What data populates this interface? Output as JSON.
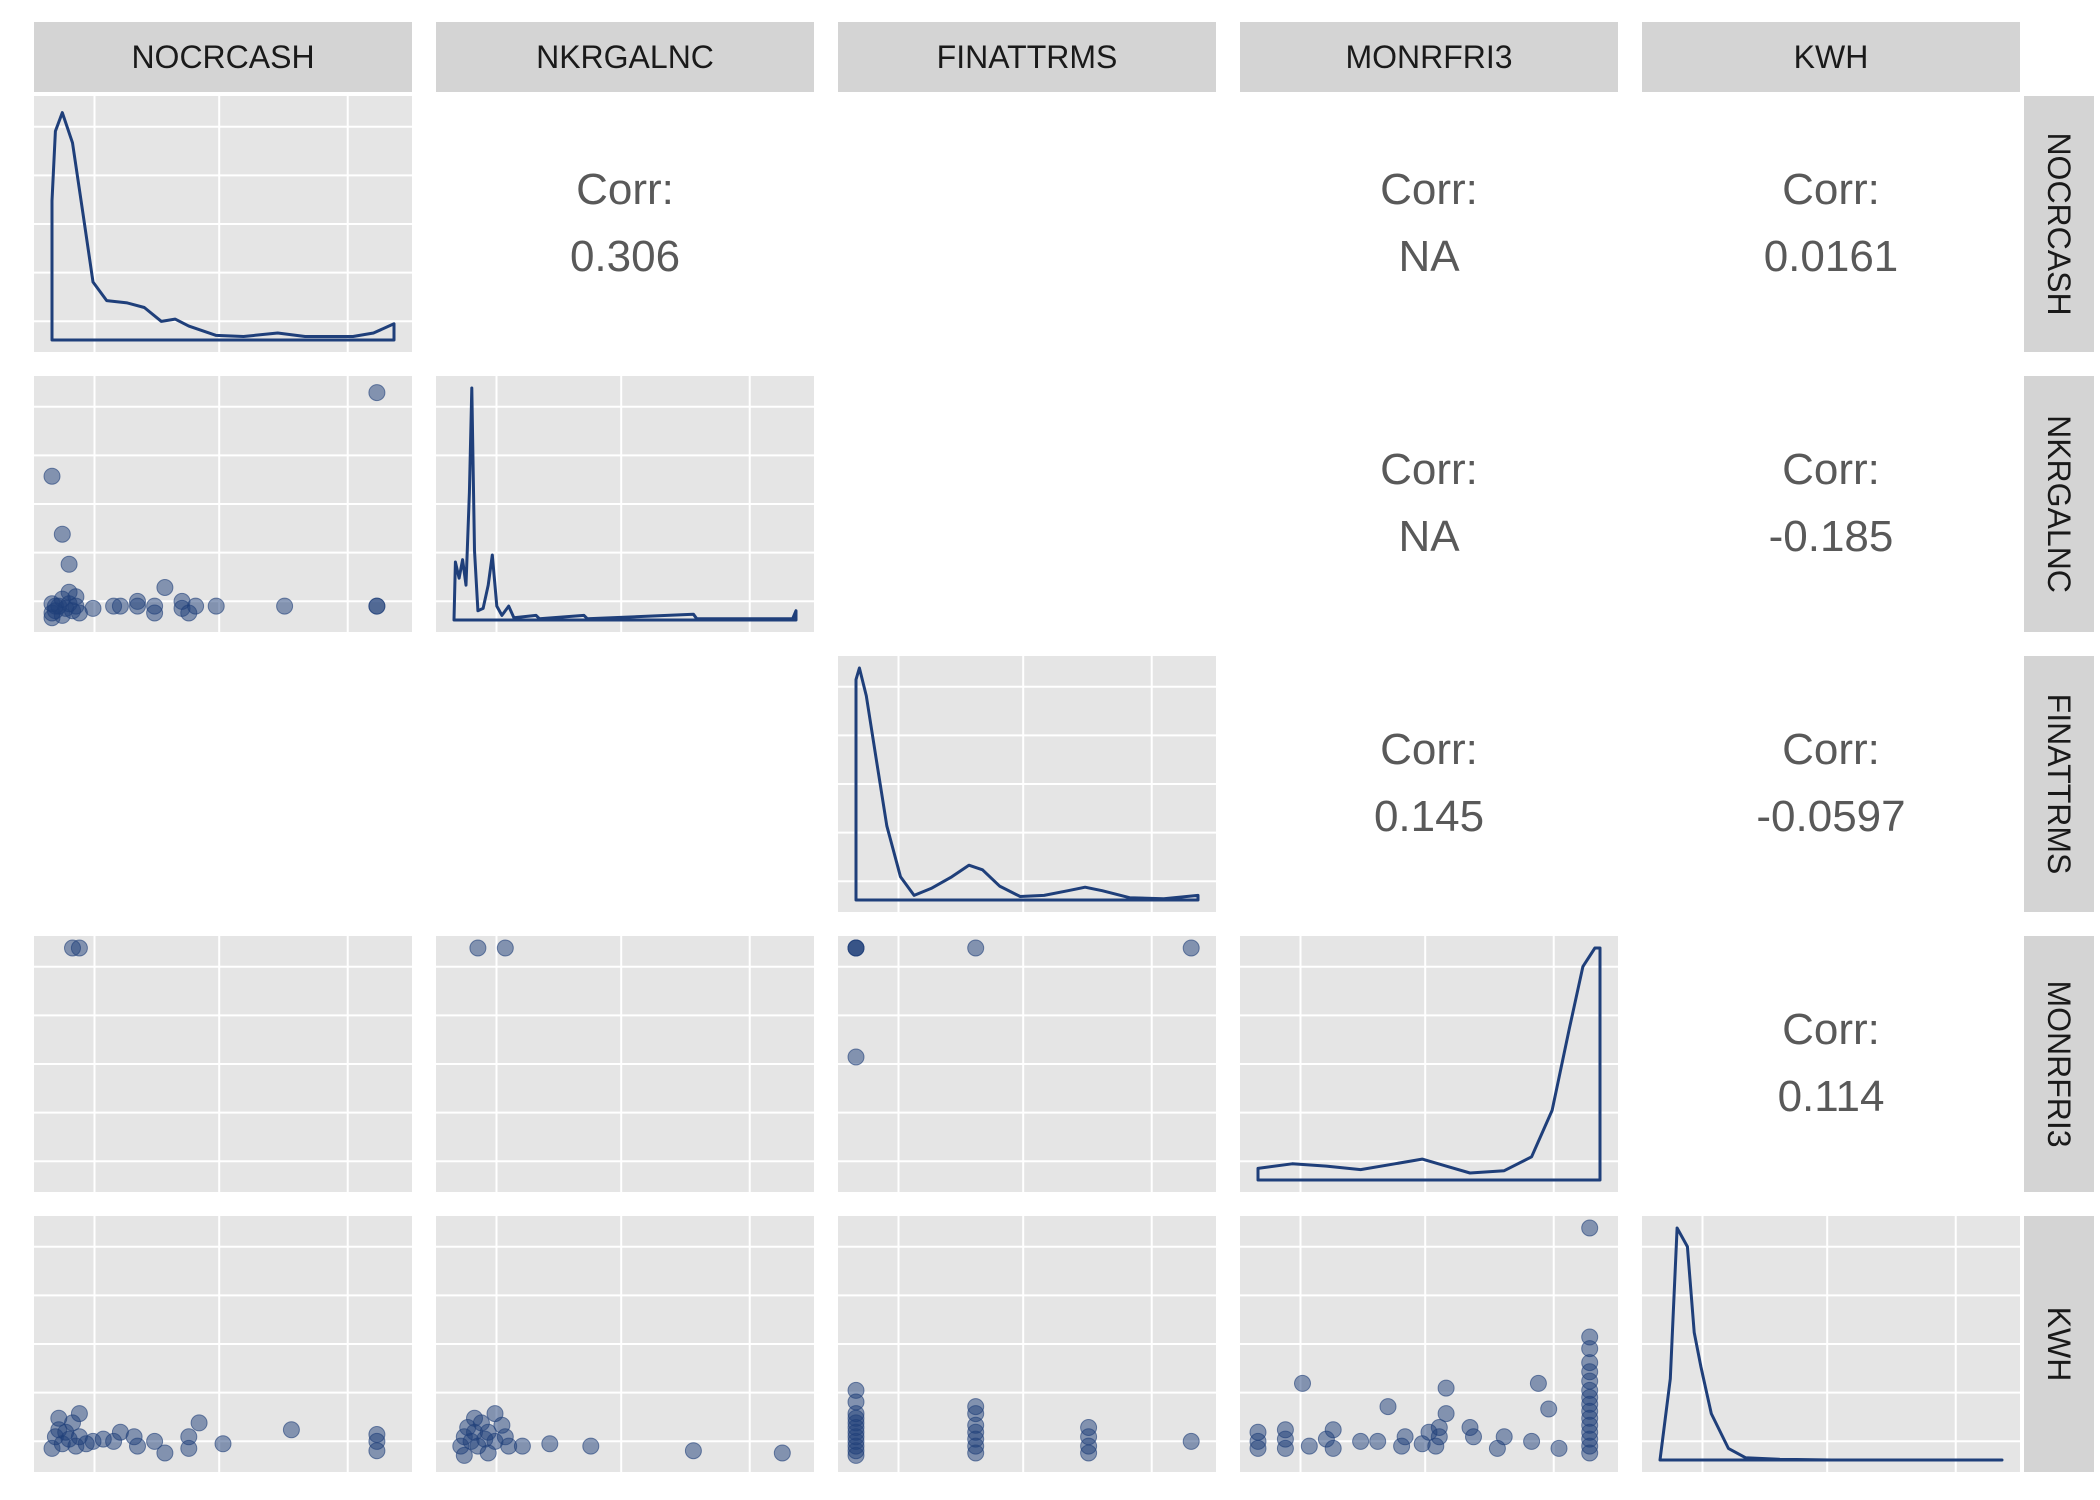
{
  "chart_data": {
    "type": "scatter-matrix",
    "variables": [
      "NOCRCASH",
      "NKRGALNC",
      "FINATTRMS",
      "MONRFRI3",
      "KWH"
    ],
    "correlation_label": "Corr:",
    "correlations": [
      {
        "row": "NOCRCASH",
        "col": "NKRGALNC",
        "value": "0.306"
      },
      {
        "row": "NOCRCASH",
        "col": "MONRFRI3",
        "value": "NA"
      },
      {
        "row": "NOCRCASH",
        "col": "KWH",
        "value": "0.0161"
      },
      {
        "row": "NKRGALNC",
        "col": "MONRFRI3",
        "value": "NA"
      },
      {
        "row": "NKRGALNC",
        "col": "KWH",
        "value": "-0.185"
      },
      {
        "row": "FINATTRMS",
        "col": "MONRFRI3",
        "value": "0.145"
      },
      {
        "row": "FINATTRMS",
        "col": "KWH",
        "value": "-0.0597"
      },
      {
        "row": "MONRFRI3",
        "col": "KWH",
        "value": "0.114"
      }
    ],
    "densities": {
      "NOCRCASH": [
        [
          0.0,
          0.6
        ],
        [
          0.01,
          0.9
        ],
        [
          0.03,
          0.98
        ],
        [
          0.06,
          0.85
        ],
        [
          0.09,
          0.55
        ],
        [
          0.12,
          0.25
        ],
        [
          0.16,
          0.17
        ],
        [
          0.22,
          0.16
        ],
        [
          0.27,
          0.14
        ],
        [
          0.32,
          0.08
        ],
        [
          0.36,
          0.09
        ],
        [
          0.4,
          0.06
        ],
        [
          0.48,
          0.02
        ],
        [
          0.56,
          0.015
        ],
        [
          0.66,
          0.03
        ],
        [
          0.74,
          0.015
        ],
        [
          0.88,
          0.015
        ],
        [
          0.94,
          0.03
        ],
        [
          1.0,
          0.07
        ],
        [
          1.0,
          0.0
        ]
      ],
      "NKRGALNC": [
        [
          0.0,
          0.0
        ],
        [
          0.004,
          0.25
        ],
        [
          0.015,
          0.18
        ],
        [
          0.025,
          0.26
        ],
        [
          0.035,
          0.15
        ],
        [
          0.045,
          0.55
        ],
        [
          0.052,
          1.0
        ],
        [
          0.06,
          0.3
        ],
        [
          0.07,
          0.04
        ],
        [
          0.085,
          0.05
        ],
        [
          0.1,
          0.15
        ],
        [
          0.112,
          0.28
        ],
        [
          0.125,
          0.06
        ],
        [
          0.14,
          0.02
        ],
        [
          0.16,
          0.06
        ],
        [
          0.175,
          0.01
        ],
        [
          0.24,
          0.02
        ],
        [
          0.25,
          0.005
        ],
        [
          0.38,
          0.02
        ],
        [
          0.39,
          0.005
        ],
        [
          0.7,
          0.025
        ],
        [
          0.71,
          0.005
        ],
        [
          0.99,
          0.005
        ],
        [
          1.0,
          0.04
        ],
        [
          1.0,
          0.0
        ]
      ],
      "FINATTRMS": [
        [
          0.0,
          0.95
        ],
        [
          0.01,
          1.0
        ],
        [
          0.03,
          0.88
        ],
        [
          0.06,
          0.6
        ],
        [
          0.09,
          0.32
        ],
        [
          0.13,
          0.1
        ],
        [
          0.17,
          0.02
        ],
        [
          0.22,
          0.05
        ],
        [
          0.28,
          0.1
        ],
        [
          0.33,
          0.15
        ],
        [
          0.37,
          0.13
        ],
        [
          0.42,
          0.06
        ],
        [
          0.48,
          0.015
        ],
        [
          0.55,
          0.02
        ],
        [
          0.62,
          0.04
        ],
        [
          0.67,
          0.055
        ],
        [
          0.72,
          0.04
        ],
        [
          0.8,
          0.01
        ],
        [
          0.9,
          0.005
        ],
        [
          1.0,
          0.02
        ]
      ],
      "MONRFRI3": [
        [
          0.0,
          0.0
        ],
        [
          0.0,
          0.05
        ],
        [
          0.1,
          0.07
        ],
        [
          0.2,
          0.06
        ],
        [
          0.3,
          0.045
        ],
        [
          0.4,
          0.07
        ],
        [
          0.48,
          0.09
        ],
        [
          0.55,
          0.06
        ],
        [
          0.62,
          0.03
        ],
        [
          0.72,
          0.04
        ],
        [
          0.8,
          0.1
        ],
        [
          0.86,
          0.3
        ],
        [
          0.91,
          0.65
        ],
        [
          0.95,
          0.92
        ],
        [
          0.985,
          1.0
        ],
        [
          1.0,
          1.0
        ],
        [
          1.0,
          0.0
        ]
      ],
      "KWH": [
        [
          0.0,
          0.0
        ],
        [
          0.03,
          0.35
        ],
        [
          0.05,
          1.0
        ],
        [
          0.08,
          0.92
        ],
        [
          0.1,
          0.55
        ],
        [
          0.12,
          0.4
        ],
        [
          0.15,
          0.2
        ],
        [
          0.2,
          0.05
        ],
        [
          0.25,
          0.01
        ],
        [
          0.35,
          0.003
        ],
        [
          0.5,
          0.0
        ],
        [
          1.0,
          0.0
        ]
      ]
    },
    "scatter": [
      {
        "x": "NOCRCASH",
        "y": "NKRGALNC",
        "points": [
          [
            0.0,
            0.01
          ],
          [
            0.0,
            0.03
          ],
          [
            0.01,
            0.04
          ],
          [
            0.02,
            0.06
          ],
          [
            0.03,
            0.02
          ],
          [
            0.04,
            0.05
          ],
          [
            0.05,
            0.07
          ],
          [
            0.06,
            0.04
          ],
          [
            0.07,
            0.06
          ],
          [
            0.08,
            0.03
          ],
          [
            0.0,
            0.07
          ],
          [
            0.01,
            0.06
          ],
          [
            0.03,
            0.09
          ],
          [
            0.05,
            0.12
          ],
          [
            0.07,
            0.1
          ],
          [
            0.12,
            0.05
          ],
          [
            0.18,
            0.06
          ],
          [
            0.2,
            0.06
          ],
          [
            0.25,
            0.08
          ],
          [
            0.25,
            0.06
          ],
          [
            0.3,
            0.06
          ],
          [
            0.3,
            0.03
          ],
          [
            0.33,
            0.14
          ],
          [
            0.38,
            0.08
          ],
          [
            0.38,
            0.05
          ],
          [
            0.4,
            0.03
          ],
          [
            0.42,
            0.06
          ],
          [
            0.48,
            0.06
          ],
          [
            0.68,
            0.06
          ],
          [
            0.95,
            0.06
          ],
          [
            0.95,
            0.06
          ],
          [
            0.0,
            0.62
          ],
          [
            0.03,
            0.37
          ],
          [
            0.05,
            0.24
          ],
          [
            0.95,
            0.98
          ]
        ]
      },
      {
        "x": "NOCRCASH",
        "y": "MONRFRI3",
        "points": [
          [
            0.06,
            1.0
          ],
          [
            0.08,
            1.0
          ]
        ]
      },
      {
        "x": "NOCRCASH",
        "y": "KWH",
        "points": [
          [
            0.0,
            0.05
          ],
          [
            0.01,
            0.1
          ],
          [
            0.02,
            0.13
          ],
          [
            0.03,
            0.07
          ],
          [
            0.04,
            0.12
          ],
          [
            0.05,
            0.09
          ],
          [
            0.06,
            0.16
          ],
          [
            0.07,
            0.06
          ],
          [
            0.08,
            0.1
          ],
          [
            0.1,
            0.07
          ],
          [
            0.12,
            0.08
          ],
          [
            0.15,
            0.09
          ],
          [
            0.18,
            0.08
          ],
          [
            0.2,
            0.12
          ],
          [
            0.24,
            0.1
          ],
          [
            0.25,
            0.06
          ],
          [
            0.3,
            0.08
          ],
          [
            0.33,
            0.03
          ],
          [
            0.4,
            0.1
          ],
          [
            0.4,
            0.05
          ],
          [
            0.43,
            0.16
          ],
          [
            0.5,
            0.07
          ],
          [
            0.7,
            0.13
          ],
          [
            0.95,
            0.11
          ],
          [
            0.95,
            0.08
          ],
          [
            0.95,
            0.04
          ],
          [
            0.02,
            0.18
          ],
          [
            0.08,
            0.2
          ]
        ]
      },
      {
        "x": "NKRGALNC",
        "y": "MONRFRI3",
        "points": [
          [
            0.07,
            1.0
          ],
          [
            0.15,
            1.0
          ]
        ]
      },
      {
        "x": "NKRGALNC",
        "y": "KWH",
        "points": [
          [
            0.02,
            0.06
          ],
          [
            0.03,
            0.1
          ],
          [
            0.04,
            0.14
          ],
          [
            0.05,
            0.08
          ],
          [
            0.06,
            0.12
          ],
          [
            0.07,
            0.06
          ],
          [
            0.08,
            0.16
          ],
          [
            0.09,
            0.09
          ],
          [
            0.1,
            0.12
          ],
          [
            0.12,
            0.08
          ],
          [
            0.14,
            0.15
          ],
          [
            0.15,
            0.1
          ],
          [
            0.16,
            0.06
          ],
          [
            0.12,
            0.2
          ],
          [
            0.06,
            0.18
          ],
          [
            0.1,
            0.03
          ],
          [
            0.03,
            0.02
          ],
          [
            0.2,
            0.06
          ],
          [
            0.28,
            0.07
          ],
          [
            0.4,
            0.06
          ],
          [
            0.7,
            0.04
          ],
          [
            0.96,
            0.03
          ]
        ]
      },
      {
        "x": "FINATTRMS",
        "y": "MONRFRI3",
        "points": [
          [
            0.0,
            1.0
          ],
          [
            0.0,
            1.0
          ],
          [
            0.0,
            1.0
          ],
          [
            0.0,
            0.53
          ],
          [
            0.35,
            1.0
          ],
          [
            0.98,
            1.0
          ]
        ]
      },
      {
        "x": "FINATTRMS",
        "y": "KWH",
        "points": [
          [
            0.0,
            0.02
          ],
          [
            0.0,
            0.04
          ],
          [
            0.0,
            0.06
          ],
          [
            0.0,
            0.08
          ],
          [
            0.0,
            0.1
          ],
          [
            0.0,
            0.12
          ],
          [
            0.0,
            0.14
          ],
          [
            0.0,
            0.16
          ],
          [
            0.0,
            0.18
          ],
          [
            0.0,
            0.2
          ],
          [
            0.0,
            0.25
          ],
          [
            0.0,
            0.3
          ],
          [
            0.35,
            0.03
          ],
          [
            0.35,
            0.06
          ],
          [
            0.35,
            0.09
          ],
          [
            0.35,
            0.12
          ],
          [
            0.35,
            0.15
          ],
          [
            0.35,
            0.2
          ],
          [
            0.35,
            0.23
          ],
          [
            0.68,
            0.03
          ],
          [
            0.68,
            0.06
          ],
          [
            0.68,
            0.1
          ],
          [
            0.68,
            0.14
          ],
          [
            0.98,
            0.08
          ]
        ]
      },
      {
        "x": "MONRFRI3",
        "y": "KWH",
        "points": [
          [
            0.0,
            0.05
          ],
          [
            0.0,
            0.08
          ],
          [
            0.0,
            0.12
          ],
          [
            0.08,
            0.05
          ],
          [
            0.08,
            0.09
          ],
          [
            0.08,
            0.13
          ],
          [
            0.13,
            0.33
          ],
          [
            0.15,
            0.06
          ],
          [
            0.2,
            0.09
          ],
          [
            0.22,
            0.13
          ],
          [
            0.22,
            0.05
          ],
          [
            0.3,
            0.08
          ],
          [
            0.35,
            0.08
          ],
          [
            0.38,
            0.23
          ],
          [
            0.42,
            0.06
          ],
          [
            0.43,
            0.1
          ],
          [
            0.48,
            0.07
          ],
          [
            0.5,
            0.12
          ],
          [
            0.52,
            0.06
          ],
          [
            0.53,
            0.1
          ],
          [
            0.53,
            0.14
          ],
          [
            0.55,
            0.2
          ],
          [
            0.55,
            0.31
          ],
          [
            0.62,
            0.14
          ],
          [
            0.63,
            0.1
          ],
          [
            0.7,
            0.05
          ],
          [
            0.72,
            0.1
          ],
          [
            0.8,
            0.08
          ],
          [
            0.82,
            0.33
          ],
          [
            0.85,
            0.22
          ],
          [
            0.88,
            0.05
          ],
          [
            0.97,
            0.03
          ],
          [
            0.97,
            0.06
          ],
          [
            0.97,
            0.09
          ],
          [
            0.97,
            0.12
          ],
          [
            0.97,
            0.15
          ],
          [
            0.97,
            0.18
          ],
          [
            0.97,
            0.21
          ],
          [
            0.97,
            0.24
          ],
          [
            0.97,
            0.27
          ],
          [
            0.97,
            0.3
          ],
          [
            0.97,
            0.34
          ],
          [
            0.97,
            0.38
          ],
          [
            0.97,
            0.42
          ],
          [
            0.97,
            0.48
          ],
          [
            0.97,
            0.53
          ],
          [
            0.97,
            1.0
          ]
        ]
      }
    ],
    "colors": {
      "series": "#1f3f7a",
      "panel": "#e5e5e5",
      "grid": "#ffffff",
      "strip": "#d4d4d4",
      "strip_text": "#1a1a1a",
      "corr_text": "#595959"
    }
  }
}
